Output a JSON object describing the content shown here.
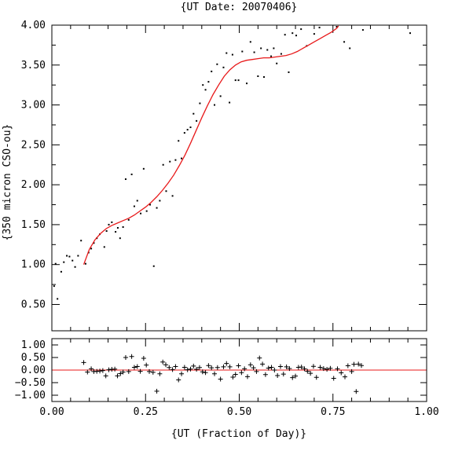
{
  "chart_data": [
    {
      "type": "scatter",
      "title": "{UT Date: 20070406}",
      "xlabel": "",
      "ylabel": "{350 micron CSO-ou}",
      "xlim": [
        0.0,
        1.0
      ],
      "ylim": [
        0.17,
        4.0
      ],
      "yticks": [
        0.5,
        1.0,
        1.5,
        2.0,
        2.5,
        3.0,
        3.5,
        4.0
      ],
      "ytick_labels": [
        "0.50",
        "1.00",
        "1.50",
        "2.00",
        "2.50",
        "3.00",
        "3.50",
        "4.00"
      ],
      "points_color": "#000000",
      "fit_color": "#e8191a",
      "series": [
        {
          "points": [
            [
              0.006,
              0.73
            ],
            [
              0.01,
              1.01
            ],
            [
              0.015,
              0.57
            ],
            [
              0.025,
              0.91
            ],
            [
              0.032,
              1.03
            ],
            [
              0.04,
              1.11
            ],
            [
              0.047,
              1.1
            ],
            [
              0.055,
              1.05
            ],
            [
              0.062,
              0.97
            ],
            [
              0.07,
              1.11
            ],
            [
              0.078,
              1.3
            ],
            [
              0.09,
              1.01
            ],
            [
              0.098,
              1.15
            ],
            [
              0.105,
              1.2
            ],
            [
              0.112,
              1.27
            ],
            [
              0.12,
              1.33
            ],
            [
              0.128,
              1.38
            ],
            [
              0.14,
              1.22
            ],
            [
              0.146,
              1.42
            ],
            [
              0.152,
              1.5
            ],
            [
              0.16,
              1.53
            ],
            [
              0.17,
              1.41
            ],
            [
              0.176,
              1.46
            ],
            [
              0.182,
              1.33
            ],
            [
              0.19,
              1.47
            ],
            [
              0.197,
              2.07
            ],
            [
              0.205,
              1.56
            ],
            [
              0.213,
              2.13
            ],
            [
              0.22,
              1.73
            ],
            [
              0.228,
              1.8
            ],
            [
              0.237,
              1.64
            ],
            [
              0.245,
              2.2
            ],
            [
              0.253,
              1.67
            ],
            [
              0.262,
              1.75
            ],
            [
              0.272,
              0.98
            ],
            [
              0.28,
              1.71
            ],
            [
              0.288,
              1.8
            ],
            [
              0.297,
              2.25
            ],
            [
              0.305,
              1.92
            ],
            [
              0.315,
              2.29
            ],
            [
              0.322,
              1.86
            ],
            [
              0.33,
              2.31
            ],
            [
              0.338,
              2.55
            ],
            [
              0.346,
              2.33
            ],
            [
              0.354,
              2.65
            ],
            [
              0.362,
              2.69
            ],
            [
              0.37,
              2.72
            ],
            [
              0.378,
              2.89
            ],
            [
              0.386,
              2.8
            ],
            [
              0.395,
              3.02
            ],
            [
              0.403,
              3.25
            ],
            [
              0.41,
              3.19
            ],
            [
              0.418,
              3.29
            ],
            [
              0.426,
              3.42
            ],
            [
              0.434,
              3.0
            ],
            [
              0.441,
              3.51
            ],
            [
              0.45,
              3.11
            ],
            [
              0.458,
              3.47
            ],
            [
              0.466,
              3.65
            ],
            [
              0.474,
              3.03
            ],
            [
              0.482,
              3.63
            ],
            [
              0.49,
              3.31
            ],
            [
              0.498,
              3.31
            ],
            [
              0.508,
              3.67
            ],
            [
              0.52,
              3.27
            ],
            [
              0.53,
              3.79
            ],
            [
              0.54,
              3.66
            ],
            [
              0.55,
              3.36
            ],
            [
              0.558,
              3.71
            ],
            [
              0.566,
              3.35
            ],
            [
              0.575,
              3.69
            ],
            [
              0.585,
              3.61
            ],
            [
              0.592,
              3.71
            ],
            [
              0.6,
              3.52
            ],
            [
              0.612,
              3.64
            ],
            [
              0.622,
              3.88
            ],
            [
              0.632,
              3.41
            ],
            [
              0.642,
              3.9
            ],
            [
              0.652,
              3.87
            ],
            [
              0.665,
              3.95
            ],
            [
              0.68,
              3.74
            ],
            [
              0.7,
              3.89
            ],
            [
              0.714,
              3.97
            ],
            [
              0.76,
              3.98
            ],
            [
              0.78,
              3.79
            ],
            [
              0.795,
              3.71
            ],
            [
              0.83,
              3.94
            ],
            [
              0.956,
              3.9
            ]
          ]
        },
        {
          "name": "",
          "fit_x": [
            0.085,
            0.1,
            0.115,
            0.13,
            0.145,
            0.16,
            0.175,
            0.19,
            0.205,
            0.22,
            0.235,
            0.25,
            0.265,
            0.28,
            0.295,
            0.31,
            0.325,
            0.34,
            0.355,
            0.37,
            0.385,
            0.4,
            0.415,
            0.43,
            0.445,
            0.46,
            0.475,
            0.49,
            0.505,
            0.52,
            0.535,
            0.55,
            0.565,
            0.58,
            0.595,
            0.61,
            0.625,
            0.64,
            0.655,
            0.67,
            0.685,
            0.7,
            0.715,
            0.73,
            0.745,
            0.76,
            0.765
          ],
          "fit_y": [
            1.0,
            1.19,
            1.31,
            1.39,
            1.45,
            1.49,
            1.52,
            1.55,
            1.58,
            1.62,
            1.67,
            1.72,
            1.78,
            1.85,
            1.93,
            2.02,
            2.12,
            2.24,
            2.37,
            2.52,
            2.68,
            2.84,
            2.99,
            3.13,
            3.25,
            3.36,
            3.44,
            3.5,
            3.54,
            3.56,
            3.57,
            3.58,
            3.59,
            3.59,
            3.6,
            3.61,
            3.62,
            3.64,
            3.67,
            3.71,
            3.75,
            3.79,
            3.83,
            3.87,
            3.91,
            3.96,
            3.99
          ]
        }
      ]
    },
    {
      "type": "scatter",
      "xlabel": "{UT (Fraction of Day)}",
      "ylabel": "",
      "xlim": [
        0.0,
        1.0
      ],
      "ylim": [
        -1.25,
        1.25
      ],
      "xticks": [
        0.0,
        0.25,
        0.5,
        0.75,
        1.0
      ],
      "xtick_labels": [
        "0.00",
        "0.25",
        "0.50",
        "0.75",
        "1.00"
      ],
      "yticks": [
        -1.0,
        -0.5,
        0.0,
        0.5,
        1.0
      ],
      "ytick_labels": [
        "−1.00",
        "−0.50",
        "0.00",
        "0.50",
        "1.00"
      ],
      "marker": "plus",
      "zero_line_color": "#e8191a",
      "points": [
        [
          0.085,
          0.3
        ],
        [
          0.095,
          -0.08
        ],
        [
          0.105,
          0.05
        ],
        [
          0.112,
          -0.06
        ],
        [
          0.12,
          -0.05
        ],
        [
          0.128,
          -0.04
        ],
        [
          0.136,
          -0.02
        ],
        [
          0.144,
          -0.23
        ],
        [
          0.152,
          0.01
        ],
        [
          0.16,
          0.03
        ],
        [
          0.168,
          0.04
        ],
        [
          0.175,
          -0.23
        ],
        [
          0.183,
          -0.14
        ],
        [
          0.19,
          -0.08
        ],
        [
          0.197,
          0.5
        ],
        [
          0.205,
          -0.06
        ],
        [
          0.213,
          0.54
        ],
        [
          0.22,
          0.11
        ],
        [
          0.228,
          0.14
        ],
        [
          0.236,
          -0.05
        ],
        [
          0.245,
          0.47
        ],
        [
          0.252,
          0.2
        ],
        [
          0.26,
          -0.06
        ],
        [
          0.27,
          -0.09
        ],
        [
          0.28,
          -0.84
        ],
        [
          0.288,
          -0.15
        ],
        [
          0.296,
          0.32
        ],
        [
          0.304,
          0.21
        ],
        [
          0.313,
          0.1
        ],
        [
          0.322,
          0.02
        ],
        [
          0.33,
          0.14
        ],
        [
          0.338,
          -0.39
        ],
        [
          0.346,
          -0.15
        ],
        [
          0.354,
          0.11
        ],
        [
          0.362,
          0.01
        ],
        [
          0.37,
          0.04
        ],
        [
          0.378,
          0.16
        ],
        [
          0.386,
          0.03
        ],
        [
          0.394,
          0.1
        ],
        [
          0.402,
          -0.07
        ],
        [
          0.41,
          -0.1
        ],
        [
          0.418,
          0.18
        ],
        [
          0.426,
          0.09
        ],
        [
          0.434,
          -0.15
        ],
        [
          0.442,
          0.1
        ],
        [
          0.45,
          -0.36
        ],
        [
          0.458,
          0.13
        ],
        [
          0.466,
          0.26
        ],
        [
          0.475,
          0.13
        ],
        [
          0.483,
          -0.28
        ],
        [
          0.49,
          -0.17
        ],
        [
          0.498,
          0.17
        ],
        [
          0.506,
          -0.1
        ],
        [
          0.514,
          0.05
        ],
        [
          0.522,
          -0.26
        ],
        [
          0.53,
          0.21
        ],
        [
          0.538,
          0.09
        ],
        [
          0.546,
          -0.06
        ],
        [
          0.554,
          0.48
        ],
        [
          0.562,
          0.24
        ],
        [
          0.57,
          -0.18
        ],
        [
          0.578,
          0.08
        ],
        [
          0.586,
          0.11
        ],
        [
          0.594,
          0.0
        ],
        [
          0.602,
          -0.22
        ],
        [
          0.61,
          0.14
        ],
        [
          0.618,
          -0.16
        ],
        [
          0.626,
          0.13
        ],
        [
          0.634,
          0.06
        ],
        [
          0.642,
          -0.3
        ],
        [
          0.65,
          -0.24
        ],
        [
          0.658,
          0.11
        ],
        [
          0.666,
          0.12
        ],
        [
          0.674,
          0.05
        ],
        [
          0.682,
          -0.05
        ],
        [
          0.69,
          -0.13
        ],
        [
          0.698,
          0.15
        ],
        [
          0.706,
          -0.29
        ],
        [
          0.716,
          0.11
        ],
        [
          0.725,
          0.06
        ],
        [
          0.734,
          0.03
        ],
        [
          0.743,
          0.07
        ],
        [
          0.752,
          -0.33
        ],
        [
          0.762,
          0.05
        ],
        [
          0.772,
          -0.11
        ],
        [
          0.782,
          -0.27
        ],
        [
          0.79,
          0.17
        ],
        [
          0.8,
          -0.06
        ],
        [
          0.806,
          0.23
        ],
        [
          0.812,
          -0.85
        ],
        [
          0.818,
          0.24
        ],
        [
          0.826,
          0.18
        ]
      ]
    }
  ]
}
